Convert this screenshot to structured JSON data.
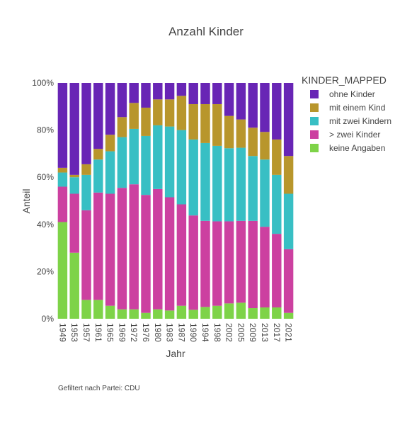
{
  "chart_data": {
    "type": "bar",
    "stacked": "percent",
    "title": "Anzahl Kinder",
    "xlabel": "Jahr",
    "ylabel": "Anteil",
    "ylim": [
      0,
      100
    ],
    "y_ticks": [
      "0%",
      "20%",
      "40%",
      "60%",
      "80%",
      "100%"
    ],
    "categories": [
      "1949",
      "1953",
      "1957",
      "1961",
      "1965",
      "1969",
      "1972",
      "1976",
      "1980",
      "1983",
      "1987",
      "1990",
      "1994",
      "1998",
      "2002",
      "2005",
      "2009",
      "2013",
      "2017",
      "2021"
    ],
    "legend": {
      "title": "KINDER_MAPPED",
      "position": "right"
    },
    "series": [
      {
        "name": "keine Angaben",
        "color": "#7ED348",
        "values": [
          41,
          28,
          8,
          8,
          5.5,
          4,
          4,
          2.5,
          4,
          3.5,
          5.5,
          3.8,
          5,
          5.5,
          6.5,
          6.8,
          4.5,
          4.8,
          4.8,
          2.5
        ]
      },
      {
        "name": "> zwei Kinder",
        "color": "#CC40A0",
        "values": [
          15,
          25,
          38,
          45.5,
          47.5,
          51.5,
          53,
          50,
          51,
          48,
          43,
          40,
          36.5,
          35.8,
          34.8,
          34.7,
          37,
          34.2,
          31.2,
          27
        ]
      },
      {
        "name": "mit zwei Kindern",
        "color": "#38BFC4",
        "values": [
          6,
          7,
          15,
          14,
          18,
          21.5,
          23.5,
          25,
          27,
          30,
          31.5,
          32.2,
          33,
          32,
          31,
          31,
          27.5,
          28.5,
          25,
          23.5
        ]
      },
      {
        "name": "mit einem Kind",
        "color": "#B8962C",
        "values": [
          2,
          1,
          4.5,
          4.5,
          7,
          8.5,
          11,
          12,
          11,
          11.5,
          14.5,
          15,
          16.5,
          17.7,
          13.7,
          12,
          12,
          11.7,
          15,
          16
        ]
      },
      {
        "name": "ohne Kinder",
        "color": "#6825B5",
        "values": [
          36,
          39,
          34.5,
          28,
          22,
          14.5,
          8.5,
          10.5,
          7,
          7,
          5.5,
          9,
          9,
          9,
          14,
          15.5,
          19,
          20.8,
          24,
          31
        ]
      }
    ]
  },
  "note": "Gefiltert nach Partei: CDU"
}
